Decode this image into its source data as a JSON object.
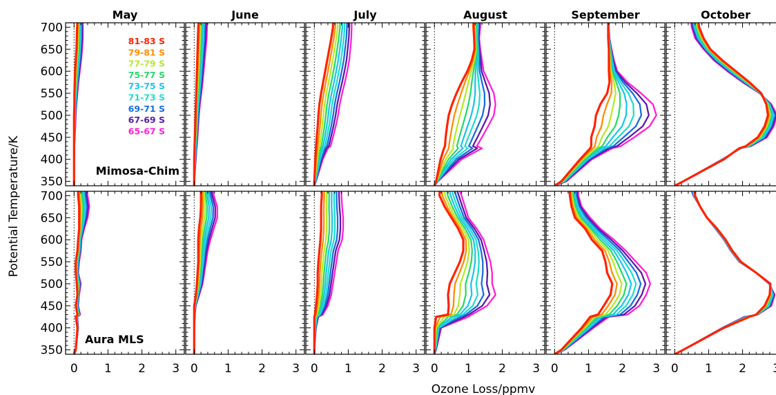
{
  "chart_data": {
    "type": "line",
    "xlabel": "Ozone Loss/ppmv",
    "ylabel": "Potential Temperature/K",
    "xlim": [
      -0.25,
      3.25
    ],
    "ylim": [
      340,
      710
    ],
    "xticks": [
      0,
      1,
      2,
      3
    ],
    "yticks": [
      350,
      400,
      450,
      500,
      550,
      600,
      650,
      700
    ],
    "months": [
      "May",
      "June",
      "July",
      "August",
      "September",
      "October"
    ],
    "rows": [
      {
        "name": "Mimosa-Chim",
        "label": "Mimosa-Chim",
        "label_panel": "May"
      },
      {
        "name": "Aura MLS",
        "label": "Aura MLS",
        "label_panel": "May"
      }
    ],
    "legend": [
      {
        "label": "81-83 S",
        "color": "#ff2200"
      },
      {
        "label": "79-81 S",
        "color": "#ff8c00"
      },
      {
        "label": "77-79 S",
        "color": "#b6ea2a"
      },
      {
        "label": "75-77 S",
        "color": "#2ad86a"
      },
      {
        "label": "73-75 S",
        "color": "#1ec4ee"
      },
      {
        "label": "71-73 S",
        "color": "#22dccc"
      },
      {
        "label": "69-71 S",
        "color": "#1a6de0"
      },
      {
        "label": "67-69 S",
        "color": "#5a1aa8"
      },
      {
        "label": "65-67 S",
        "color": "#ff1ed8"
      }
    ],
    "theta": [
      340,
      350,
      400,
      425,
      430,
      450,
      475,
      500,
      525,
      550,
      575,
      600,
      625,
      650,
      675,
      700,
      710
    ],
    "panels": [
      {
        "row": "Mimosa-Chim",
        "month": "May",
        "inner": [
          0.0,
          0.0,
          0.0,
          0.0,
          0.0,
          0.0,
          0.0,
          0.0,
          0.01,
          0.01,
          0.02,
          0.03,
          0.05,
          0.07,
          0.08,
          0.09,
          0.1
        ],
        "outer": [
          0.0,
          0.0,
          0.0,
          0.01,
          0.01,
          0.02,
          0.04,
          0.05,
          0.07,
          0.1,
          0.13,
          0.17,
          0.21,
          0.24,
          0.26,
          0.26,
          0.26
        ]
      },
      {
        "row": "Mimosa-Chim",
        "month": "June",
        "inner": [
          0.0,
          0.0,
          0.0,
          0.01,
          0.01,
          0.02,
          0.03,
          0.04,
          0.05,
          0.06,
          0.07,
          0.08,
          0.09,
          0.1,
          0.11,
          0.12,
          0.13
        ],
        "outer": [
          0.0,
          0.0,
          0.05,
          0.07,
          0.08,
          0.1,
          0.12,
          0.14,
          0.17,
          0.21,
          0.25,
          0.28,
          0.31,
          0.34,
          0.37,
          0.38,
          0.38
        ]
      },
      {
        "row": "Mimosa-Chim",
        "month": "July",
        "inner": [
          0.0,
          0.0,
          0.03,
          0.05,
          0.05,
          0.07,
          0.1,
          0.12,
          0.15,
          0.2,
          0.26,
          0.32,
          0.38,
          0.44,
          0.5,
          0.55,
          0.55
        ],
        "outer": [
          0.0,
          0.05,
          0.25,
          0.4,
          0.48,
          0.55,
          0.63,
          0.7,
          0.75,
          0.82,
          0.9,
          0.97,
          1.03,
          1.06,
          1.09,
          1.1,
          1.1
        ]
      },
      {
        "row": "Mimosa-Chim",
        "month": "August",
        "inner": [
          0.0,
          0.05,
          0.18,
          0.28,
          0.31,
          0.33,
          0.37,
          0.42,
          0.52,
          0.65,
          0.8,
          0.97,
          1.1,
          1.18,
          1.17,
          1.15,
          1.15
        ],
        "outer": [
          0.0,
          0.1,
          0.8,
          1.4,
          1.25,
          1.4,
          1.58,
          1.75,
          1.8,
          1.75,
          1.6,
          1.45,
          1.4,
          1.35,
          1.32,
          1.35,
          1.35
        ]
      },
      {
        "row": "Mimosa-Chim",
        "month": "September",
        "inner": [
          0.0,
          0.2,
          0.75,
          1.05,
          1.08,
          1.08,
          1.18,
          1.22,
          1.35,
          1.55,
          1.62,
          1.6,
          1.6,
          1.6,
          1.58,
          1.58,
          1.58
        ],
        "outer": [
          0.0,
          0.35,
          1.1,
          1.7,
          1.95,
          2.35,
          2.8,
          3.0,
          2.9,
          2.55,
          2.15,
          1.85,
          1.75,
          1.68,
          1.62,
          1.6,
          1.6
        ]
      },
      {
        "row": "Mimosa-Chim",
        "month": "October",
        "inner": [
          0.0,
          0.25,
          1.45,
          1.9,
          2.1,
          2.45,
          2.65,
          2.75,
          2.7,
          2.55,
          2.2,
          1.8,
          1.4,
          1.05,
          0.85,
          0.72,
          0.7
        ],
        "outer": [
          0.0,
          0.25,
          1.4,
          1.95,
          2.25,
          2.72,
          2.92,
          3.02,
          2.85,
          2.5,
          2.0,
          1.55,
          1.15,
          0.85,
          0.6,
          0.5,
          0.48
        ]
      },
      {
        "row": "Aura MLS",
        "month": "May",
        "inner": [
          0.0,
          0.05,
          0.1,
          0.05,
          0.1,
          0.05,
          0.1,
          0.08,
          0.05,
          0.05,
          0.1,
          0.12,
          0.15,
          0.15,
          0.15,
          0.12,
          0.12
        ],
        "outer": [
          0.0,
          0.05,
          0.12,
          0.1,
          0.18,
          0.12,
          0.15,
          0.2,
          0.12,
          0.15,
          0.2,
          0.22,
          0.3,
          0.4,
          0.45,
          0.4,
          0.38
        ]
      },
      {
        "row": "Aura MLS",
        "month": "June",
        "inner": [
          0.0,
          0.0,
          0.0,
          0.0,
          0.0,
          0.0,
          0.05,
          0.08,
          0.1,
          0.12,
          0.12,
          0.12,
          0.14,
          0.18,
          0.2,
          0.2,
          0.2
        ],
        "outer": [
          0.0,
          0.0,
          0.0,
          0.02,
          0.02,
          0.05,
          0.15,
          0.25,
          0.3,
          0.35,
          0.4,
          0.48,
          0.58,
          0.68,
          0.68,
          0.58,
          0.55
        ]
      },
      {
        "row": "Aura MLS",
        "month": "July",
        "inner": [
          0.0,
          0.0,
          0.0,
          0.0,
          0.02,
          0.05,
          0.08,
          0.1,
          0.1,
          0.12,
          0.15,
          0.18,
          0.2,
          0.2,
          0.2,
          0.22,
          0.22
        ],
        "outer": [
          0.0,
          0.0,
          0.05,
          0.12,
          0.25,
          0.4,
          0.5,
          0.55,
          0.6,
          0.65,
          0.7,
          0.82,
          0.85,
          0.85,
          0.82,
          0.8,
          0.8
        ]
      },
      {
        "row": "Aura MLS",
        "month": "August",
        "inner": [
          0.0,
          0.0,
          0.0,
          0.05,
          0.4,
          0.42,
          0.4,
          0.45,
          0.6,
          0.75,
          0.85,
          0.85,
          0.7,
          0.5,
          0.3,
          0.15,
          0.15
        ],
        "outer": [
          0.0,
          0.05,
          0.2,
          1.0,
          1.1,
          1.55,
          1.8,
          1.7,
          1.7,
          1.65,
          1.55,
          1.45,
          1.25,
          1.0,
          0.9,
          0.8,
          0.75
        ]
      },
      {
        "row": "Aura MLS",
        "month": "September",
        "inner": [
          0.0,
          0.2,
          0.8,
          1.05,
          1.28,
          1.45,
          1.65,
          1.7,
          1.55,
          1.5,
          1.4,
          1.1,
          0.9,
          0.6,
          0.5,
          0.45,
          0.45
        ],
        "outer": [
          0.0,
          0.3,
          1.15,
          1.6,
          2.15,
          2.5,
          2.7,
          2.82,
          2.7,
          2.4,
          2.1,
          1.75,
          1.35,
          1.05,
          0.8,
          0.7,
          0.7
        ]
      },
      {
        "row": "Aura MLS",
        "month": "October",
        "inner": [
          0.0,
          0.25,
          1.45,
          2.2,
          2.4,
          2.65,
          2.8,
          2.82,
          2.4,
          1.95,
          1.7,
          1.5,
          1.25,
          0.95,
          0.75,
          0.6,
          0.6
        ],
        "outer": [
          0.0,
          0.25,
          1.4,
          2.05,
          2.45,
          2.85,
          2.95,
          2.78,
          2.4,
          1.9,
          1.65,
          1.45,
          1.2,
          0.95,
          0.75,
          0.55,
          0.5
        ]
      }
    ]
  }
}
